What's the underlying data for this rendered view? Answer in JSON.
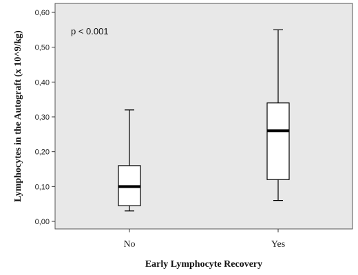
{
  "chart_data": {
    "type": "boxplot",
    "xlabel": "Early Lymphocyte Recovery",
    "ylabel": "Lymphocytes in the Autograft (x 10^9/kg)",
    "ylim": [
      0,
      0.6
    ],
    "yticks": [
      "0,00",
      "0,10",
      "0,20",
      "0,30",
      "0,40",
      "0,50",
      "0,60"
    ],
    "ytick_values": [
      0,
      0.1,
      0.2,
      0.3,
      0.4,
      0.5,
      0.6
    ],
    "categories": [
      "No",
      "Yes"
    ],
    "boxes": [
      {
        "category": "No",
        "whisker_low": 0.03,
        "q1": 0.045,
        "median": 0.1,
        "q3": 0.16,
        "whisker_high": 0.32
      },
      {
        "category": "Yes",
        "whisker_low": 0.06,
        "q1": 0.12,
        "median": 0.26,
        "q3": 0.34,
        "whisker_high": 0.55
      }
    ],
    "annotation": "p < 0.001",
    "plot_background": "#e8e8e8",
    "grid": false,
    "legend": "none"
  }
}
